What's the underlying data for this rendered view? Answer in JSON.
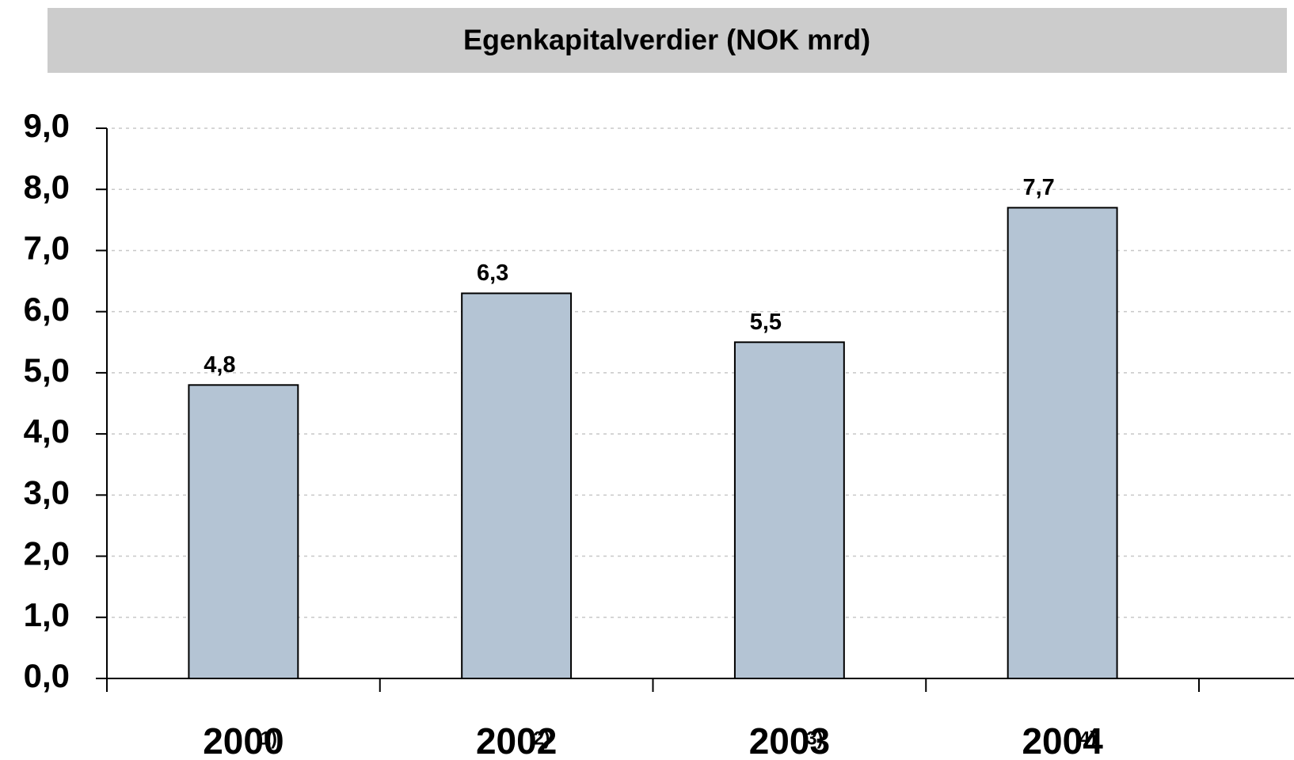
{
  "chart_data": {
    "type": "bar",
    "title": "Egenkapitalverdier (NOK mrd)",
    "categories": [
      "2000",
      "2002",
      "2003",
      "2004"
    ],
    "category_notes": [
      "1)",
      "2)",
      "3)",
      "4)"
    ],
    "values": [
      4.8,
      6.3,
      5.5,
      7.7
    ],
    "value_labels": [
      "4,8",
      "6,3",
      "5,5",
      "7,7"
    ],
    "color": "#b4c4d4",
    "ylim": [
      0,
      9
    ],
    "yticks": [
      {
        "value": 0,
        "label": "0,0"
      },
      {
        "value": 1,
        "label": "1,0"
      },
      {
        "value": 2,
        "label": "2,0"
      },
      {
        "value": 3,
        "label": "3,0"
      },
      {
        "value": 4,
        "label": "4,0"
      },
      {
        "value": 5,
        "label": "5,0"
      },
      {
        "value": 6,
        "label": "6,0"
      },
      {
        "value": 7,
        "label": "7,0"
      },
      {
        "value": 8,
        "label": "8,0"
      },
      {
        "value": 9,
        "label": "9,0"
      }
    ],
    "grid": true
  }
}
